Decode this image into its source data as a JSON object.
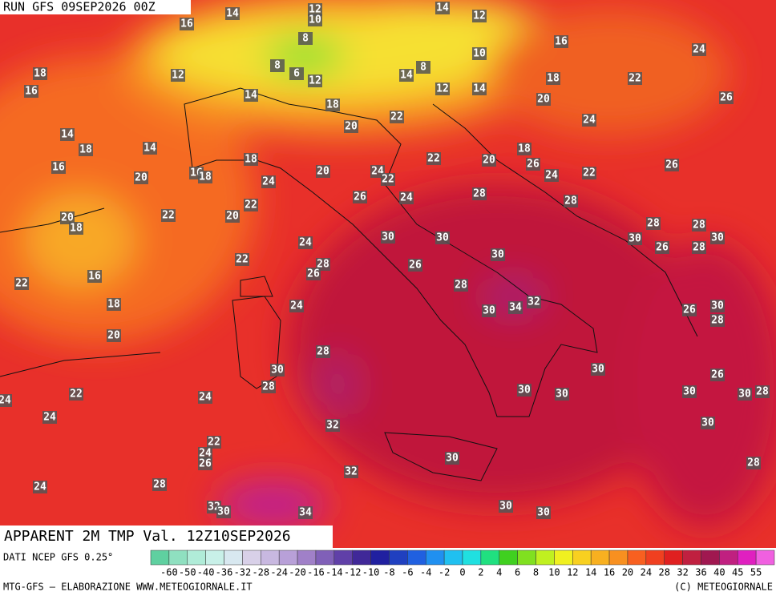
{
  "header": {
    "run": "RUN GFS 09SEP2026 00Z"
  },
  "footer": {
    "title": "APPARENT 2M TMP Val. 12Z10SEP2026",
    "source": "DATI NCEP GFS 0.25°",
    "credit_left": "MTG-GFS — ELABORAZIONE WWW.METEOGIORNALE.IT",
    "credit_right": "(C) METEOGIORNALE"
  },
  "colorbar": {
    "ticks": [
      -60,
      -50,
      -40,
      -36,
      -32,
      -28,
      -24,
      -20,
      -16,
      -14,
      -12,
      -10,
      -8,
      -6,
      -4,
      -2,
      0,
      2,
      4,
      6,
      8,
      10,
      12,
      14,
      16,
      20,
      24,
      28,
      32,
      36,
      40,
      45,
      55
    ],
    "colors": [
      "#5fd0a0",
      "#8fe0c0",
      "#b0ecd8",
      "#c8f0e8",
      "#d8e8f0",
      "#d8d0e8",
      "#c8b8e0",
      "#b8a0d8",
      "#a080c8",
      "#8060b8",
      "#6040a8",
      "#402898",
      "#2020a0",
      "#2040c0",
      "#2060e0",
      "#2090f0",
      "#20c0f0",
      "#20e0e0",
      "#20e080",
      "#40d020",
      "#80e020",
      "#c0f020",
      "#f0f020",
      "#f8d020",
      "#f8b020",
      "#f89020",
      "#f86020",
      "#f04020",
      "#e02020",
      "#c02040",
      "#a01850",
      "#c02080",
      "#e020c0",
      "#f060e0"
    ]
  },
  "map_labels": [
    14,
    12,
    10,
    14,
    12,
    16,
    8,
    16,
    24,
    10,
    18,
    12,
    8,
    6,
    12,
    14,
    8,
    16,
    18,
    22,
    14,
    12,
    14,
    18,
    20,
    26,
    24,
    22,
    20,
    14,
    18,
    14,
    18,
    20,
    22,
    26,
    26,
    16,
    16,
    18,
    18,
    20,
    24,
    22,
    20,
    24,
    24,
    22,
    26,
    24,
    28,
    28,
    22,
    22,
    20,
    20,
    18,
    28,
    28,
    30,
    30,
    30,
    30,
    24,
    26,
    28,
    22,
    28,
    30,
    26,
    26,
    22,
    16,
    28,
    18,
    24,
    30,
    34,
    32,
    26,
    30,
    28,
    20,
    28,
    30,
    30,
    26,
    28,
    30,
    30,
    30,
    30,
    28,
    22,
    24,
    24,
    24,
    30,
    32,
    22,
    24,
    26,
    30,
    28,
    32,
    24,
    28,
    32,
    30,
    34,
    30,
    30
  ]
}
